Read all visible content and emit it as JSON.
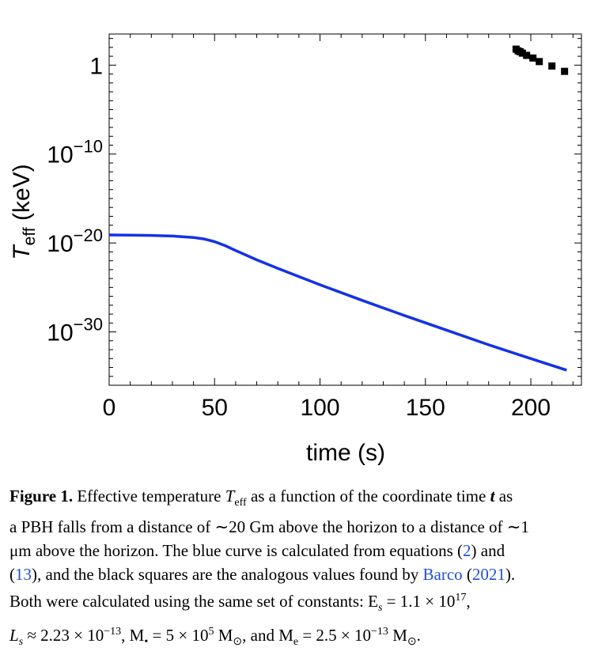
{
  "chart_data": {
    "type": "line",
    "xlabel": "time (s)",
    "ylabel": "T_eff (keV)",
    "ylabel_main": "T",
    "ylabel_sub": "eff",
    "ylabel_unit": " (keV)",
    "xlim": [
      0,
      224
    ],
    "ylim_log10": [
      -36,
      3.5
    ],
    "yscale": "log",
    "grid": false,
    "x_ticks": [
      {
        "value": 0,
        "label": "0"
      },
      {
        "value": 50,
        "label": "50"
      },
      {
        "value": 100,
        "label": "100"
      },
      {
        "value": 150,
        "label": "150"
      },
      {
        "value": 200,
        "label": "200"
      }
    ],
    "y_ticks": [
      {
        "log10": 0,
        "base": "1",
        "exp": ""
      },
      {
        "log10": -10,
        "base": "10",
        "exp": "−10"
      },
      {
        "log10": -20,
        "base": "10",
        "exp": "−20"
      },
      {
        "log10": -30,
        "base": "10",
        "exp": "−30"
      }
    ],
    "series": [
      {
        "type": "line",
        "color": "#1432e6",
        "points_log10": [
          [
            0,
            -19.1
          ],
          [
            10,
            -19.12
          ],
          [
            20,
            -19.15
          ],
          [
            30,
            -19.22
          ],
          [
            40,
            -19.38
          ],
          [
            45,
            -19.55
          ],
          [
            50,
            -19.85
          ],
          [
            55,
            -20.3
          ],
          [
            60,
            -20.85
          ],
          [
            70,
            -21.9
          ],
          [
            80,
            -22.85
          ],
          [
            100,
            -24.7
          ],
          [
            120,
            -26.45
          ],
          [
            140,
            -28.15
          ],
          [
            160,
            -29.8
          ],
          [
            180,
            -31.45
          ],
          [
            200,
            -33.0
          ],
          [
            217,
            -34.3
          ]
        ]
      },
      {
        "type": "scatter",
        "marker": "square",
        "color": "#000000",
        "points_log10": [
          [
            193,
            1.8
          ],
          [
            194,
            1.6
          ],
          [
            195,
            1.5
          ],
          [
            196,
            1.35
          ],
          [
            198,
            1.1
          ],
          [
            201,
            0.8
          ],
          [
            204,
            0.4
          ],
          [
            210,
            -0.1
          ],
          [
            216,
            -0.7
          ]
        ]
      }
    ]
  },
  "caption": {
    "figure_label": "Figure 1.",
    "line1_text": " Effective temperature ",
    "line1_T": "T",
    "line1_sub": "eff",
    "line1_rest": " as a function of the coordinate time ",
    "line1_t": "t",
    "line1_end": " as",
    "line2": "a PBH falls from a distance of ∼20 Gm above the horizon to a distance of ∼1",
    "line3_a": "μm above the horizon. The blue curve is calculated from equations (",
    "line3_ref1": "2",
    "line3_b": ") and",
    "line4_a": "(",
    "line4_ref2": "13",
    "line4_b": "), and the black squares are the analogous values found by ",
    "line4_cite": "Barco",
    "line4_c": " (",
    "line4_year": "2021",
    "line4_d": ").",
    "line5": "Both were calculated using the same set of constants: E",
    "line5_sub": "s",
    "line5_val": " = 1.1 × 10",
    "line5_exp": "17",
    "line5_end": ",",
    "line6_L": "L",
    "line6_Ls": "s",
    "line6_a": " ≈ 2.23 × 10",
    "line6_exp1": "−13",
    "line6_b": ", M",
    "line6_bsub": "•",
    "line6_c": " = 5 × 10",
    "line6_exp2": "5",
    "line6_d": " M",
    "line6_dsub": "⊙",
    "line6_e": ", and M",
    "line6_esub": "e",
    "line6_f": " = 2.5 × 10",
    "line6_exp3": "−13",
    "line6_g": " M",
    "line6_gsub": "⊙",
    "line6_h": "."
  }
}
